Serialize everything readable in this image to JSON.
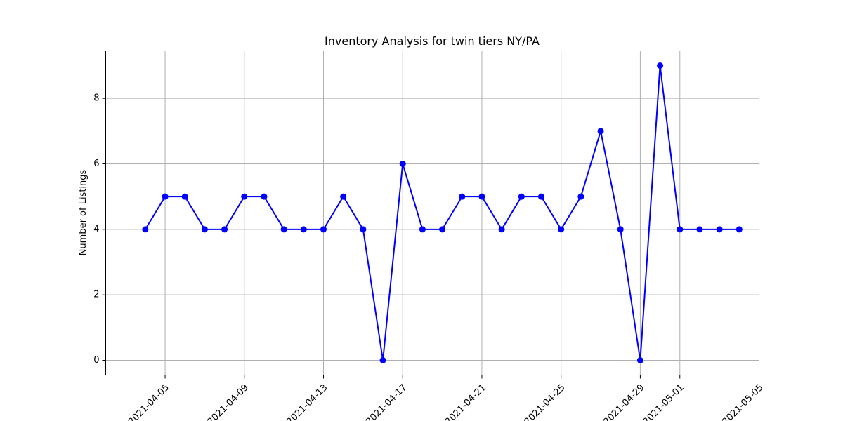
{
  "chart_data": {
    "type": "line",
    "title": "Inventory Analysis for twin tiers NY/PA",
    "xlabel": "",
    "ylabel": "Number of Listings",
    "x_type": "date",
    "xlim": [
      "2021-04-02",
      "2021-05-05"
    ],
    "ylim": [
      -0.45,
      9.45
    ],
    "x_ticks": [
      "2021-04-05",
      "2021-04-09",
      "2021-04-13",
      "2021-04-17",
      "2021-04-21",
      "2021-04-25",
      "2021-04-29",
      "2021-05-01",
      "2021-05-05"
    ],
    "y_ticks": [
      0,
      2,
      4,
      6,
      8
    ],
    "grid": true,
    "series": [
      {
        "color": "#0000ff",
        "marker": "circle",
        "points": [
          {
            "x": "2021-04-04",
            "y": 4
          },
          {
            "x": "2021-04-05",
            "y": 5
          },
          {
            "x": "2021-04-06",
            "y": 5
          },
          {
            "x": "2021-04-07",
            "y": 4
          },
          {
            "x": "2021-04-08",
            "y": 4
          },
          {
            "x": "2021-04-09",
            "y": 5
          },
          {
            "x": "2021-04-10",
            "y": 5
          },
          {
            "x": "2021-04-11",
            "y": 4
          },
          {
            "x": "2021-04-12",
            "y": 4
          },
          {
            "x": "2021-04-13",
            "y": 4
          },
          {
            "x": "2021-04-14",
            "y": 5
          },
          {
            "x": "2021-04-15",
            "y": 4
          },
          {
            "x": "2021-04-16",
            "y": 0
          },
          {
            "x": "2021-04-17",
            "y": 6
          },
          {
            "x": "2021-04-18",
            "y": 4
          },
          {
            "x": "2021-04-19",
            "y": 4
          },
          {
            "x": "2021-04-20",
            "y": 5
          },
          {
            "x": "2021-04-21",
            "y": 5
          },
          {
            "x": "2021-04-22",
            "y": 4
          },
          {
            "x": "2021-04-23",
            "y": 5
          },
          {
            "x": "2021-04-24",
            "y": 5
          },
          {
            "x": "2021-04-25",
            "y": 4
          },
          {
            "x": "2021-04-26",
            "y": 5
          },
          {
            "x": "2021-04-27",
            "y": 7
          },
          {
            "x": "2021-04-28",
            "y": 4
          },
          {
            "x": "2021-04-29",
            "y": 0
          },
          {
            "x": "2021-04-30",
            "y": 9
          },
          {
            "x": "2021-05-01",
            "y": 4
          },
          {
            "x": "2021-05-02",
            "y": 4
          },
          {
            "x": "2021-05-03",
            "y": 4
          },
          {
            "x": "2021-05-04",
            "y": 4
          }
        ]
      }
    ]
  }
}
